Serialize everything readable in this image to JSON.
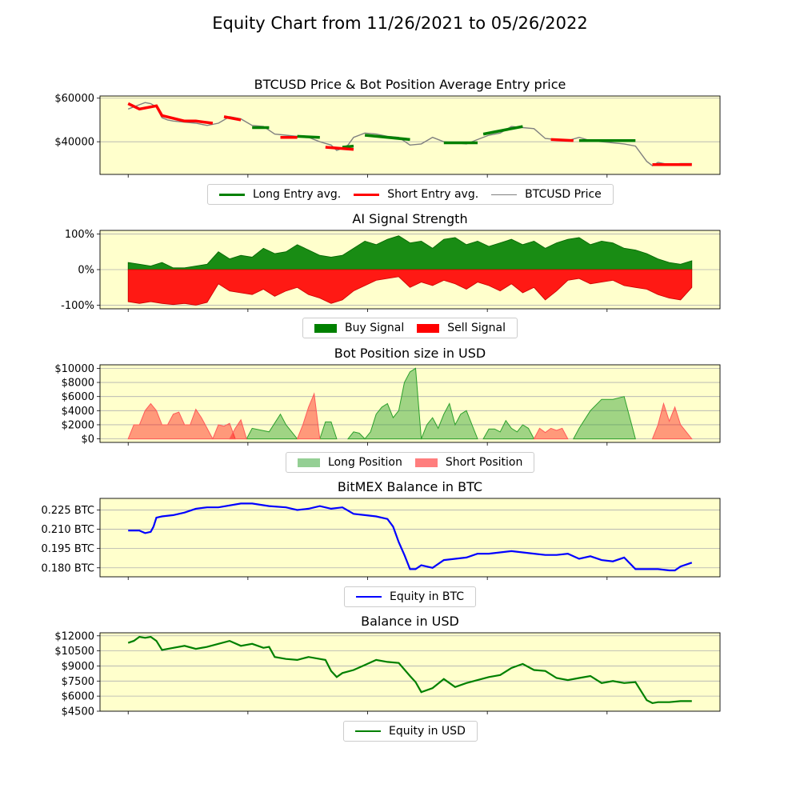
{
  "figure_title": "Equity Chart from 11/26/2021 to 05/26/2022",
  "chart_data": [
    {
      "type": "line",
      "title": "BTCUSD Price & Bot Position Average Entry price",
      "yticks": [
        {
          "v": 60000,
          "label": "$60000"
        },
        {
          "v": 40000,
          "label": "$40000"
        }
      ],
      "ylim": [
        25000,
        61000
      ],
      "xlim": [
        -0.05,
        1.05
      ],
      "grid": "horizontal",
      "legend_position": "bottom-center",
      "legend": [
        {
          "label": "Long Entry avg.",
          "color": "#008000"
        },
        {
          "label": "Short Entry avg.",
          "color": "#ff0000"
        },
        {
          "label": "BTCUSD Price",
          "color": "#808080"
        }
      ],
      "price": {
        "x": [
          0,
          0.02,
          0.03,
          0.04,
          0.05,
          0.06,
          0.07,
          0.08,
          0.1,
          0.12,
          0.14,
          0.16,
          0.18,
          0.2,
          0.22,
          0.24,
          0.26,
          0.28,
          0.3,
          0.32,
          0.34,
          0.36,
          0.37,
          0.38,
          0.39,
          0.4,
          0.42,
          0.44,
          0.46,
          0.48,
          0.5,
          0.52,
          0.54,
          0.56,
          0.58,
          0.6,
          0.62,
          0.64,
          0.66,
          0.68,
          0.7,
          0.72,
          0.74,
          0.76,
          0.78,
          0.8,
          0.82,
          0.84,
          0.86,
          0.88,
          0.9,
          0.92,
          0.93,
          0.94,
          0.96,
          0.98,
          1.0
        ],
        "y": [
          55000,
          57000,
          58000,
          57500,
          56000,
          51000,
          50000,
          49500,
          49000,
          48500,
          47500,
          48500,
          51500,
          50500,
          47500,
          47000,
          43500,
          43000,
          42500,
          42000,
          40000,
          38500,
          36000,
          37000,
          38500,
          42000,
          44000,
          43500,
          42500,
          42000,
          38500,
          39000,
          42000,
          40000,
          39500,
          39000,
          41000,
          43000,
          44000,
          47000,
          46500,
          46000,
          41500,
          41000,
          40500,
          42000,
          40500,
          40000,
          39500,
          39000,
          38000,
          31000,
          29000,
          30500,
          29500,
          30000,
          30000
        ]
      },
      "long_entry": [
        {
          "x": [
            0.22,
            0.25
          ],
          "y": [
            46500,
            46500
          ]
        },
        {
          "x": [
            0.3,
            0.34
          ],
          "y": [
            42500,
            42000
          ]
        },
        {
          "x": [
            0.38,
            0.4
          ],
          "y": [
            37500,
            38000
          ]
        },
        {
          "x": [
            0.42,
            0.5
          ],
          "y": [
            43000,
            41000
          ]
        },
        {
          "x": [
            0.56,
            0.62
          ],
          "y": [
            39500,
            39500
          ]
        },
        {
          "x": [
            0.63,
            0.7
          ],
          "y": [
            43500,
            47000
          ]
        },
        {
          "x": [
            0.8,
            0.9
          ],
          "y": [
            40500,
            40500
          ]
        }
      ],
      "short_entry": [
        {
          "x": [
            0,
            0.02,
            0.05,
            0.06,
            0.1,
            0.12,
            0.15
          ],
          "y": [
            57500,
            55000,
            56500,
            52000,
            49500,
            49500,
            48500
          ]
        },
        {
          "x": [
            0.17,
            0.2
          ],
          "y": [
            51500,
            50000
          ]
        },
        {
          "x": [
            0.27,
            0.3
          ],
          "y": [
            42000,
            42000
          ]
        },
        {
          "x": [
            0.35,
            0.4
          ],
          "y": [
            37500,
            36500
          ]
        },
        {
          "x": [
            0.75,
            0.79
          ],
          "y": [
            41000,
            40500
          ]
        },
        {
          "x": [
            0.93,
            1.0
          ],
          "y": [
            29500,
            29500
          ]
        }
      ]
    },
    {
      "type": "area",
      "title": "AI Signal Strength",
      "yticks": [
        {
          "v": 100,
          "label": "100%"
        },
        {
          "v": 0,
          "label": "0%"
        },
        {
          "v": -100,
          "label": "-100%"
        }
      ],
      "ylim": [
        -110,
        110
      ],
      "xlim": [
        -0.05,
        1.05
      ],
      "grid": "horizontal",
      "legend_position": "bottom-center",
      "legend": [
        {
          "label": "Buy Signal",
          "color": "#008000"
        },
        {
          "label": "Sell Signal",
          "color": "#ff0000"
        }
      ],
      "x": [
        0,
        0.02,
        0.04,
        0.06,
        0.08,
        0.1,
        0.12,
        0.14,
        0.16,
        0.18,
        0.2,
        0.22,
        0.24,
        0.26,
        0.28,
        0.3,
        0.32,
        0.34,
        0.36,
        0.38,
        0.4,
        0.42,
        0.44,
        0.46,
        0.48,
        0.5,
        0.52,
        0.54,
        0.56,
        0.58,
        0.6,
        0.62,
        0.64,
        0.66,
        0.68,
        0.7,
        0.72,
        0.74,
        0.76,
        0.78,
        0.8,
        0.82,
        0.84,
        0.86,
        0.88,
        0.9,
        0.92,
        0.94,
        0.96,
        0.98,
        1.0
      ],
      "buy": [
        20,
        15,
        10,
        20,
        5,
        5,
        10,
        15,
        50,
        30,
        40,
        35,
        60,
        45,
        50,
        70,
        55,
        40,
        35,
        40,
        60,
        80,
        70,
        85,
        95,
        75,
        80,
        60,
        85,
        90,
        70,
        80,
        65,
        75,
        85,
        70,
        80,
        60,
        75,
        85,
        90,
        70,
        80,
        75,
        60,
        55,
        45,
        30,
        20,
        15,
        25
      ],
      "sell": [
        -90,
        -95,
        -90,
        -95,
        -98,
        -95,
        -100,
        -92,
        -40,
        -60,
        -65,
        -70,
        -55,
        -75,
        -60,
        -50,
        -70,
        -80,
        -95,
        -85,
        -60,
        -45,
        -30,
        -25,
        -20,
        -50,
        -35,
        -45,
        -30,
        -40,
        -55,
        -35,
        -45,
        -60,
        -40,
        -65,
        -50,
        -85,
        -60,
        -30,
        -25,
        -40,
        -35,
        -30,
        -45,
        -50,
        -55,
        -70,
        -80,
        -85,
        -50
      ]
    },
    {
      "type": "area",
      "title": "Bot Position size in USD",
      "yticks": [
        {
          "v": 10000,
          "label": "$10000"
        },
        {
          "v": 8000,
          "label": "$8000"
        },
        {
          "v": 6000,
          "label": "$6000"
        },
        {
          "v": 4000,
          "label": "$4000"
        },
        {
          "v": 2000,
          "label": "$2000"
        },
        {
          "v": 0,
          "label": "$0"
        }
      ],
      "ylim": [
        -500,
        10500
      ],
      "xlim": [
        -0.05,
        1.05
      ],
      "grid": "horizontal",
      "legend_position": "bottom-center",
      "legend": [
        {
          "label": "Long Position",
          "color": "#2ca02c"
        },
        {
          "label": "Short Position",
          "color": "#ff0000"
        }
      ],
      "long": [
        {
          "x": [
            0.21,
            0.22,
            0.25,
            0.27,
            0.28,
            0.3
          ],
          "y": [
            0,
            1500,
            1000,
            3500,
            2000,
            0
          ]
        },
        {
          "x": [
            0.34,
            0.35,
            0.36,
            0.37
          ],
          "y": [
            0,
            2400,
            2400,
            0
          ]
        },
        {
          "x": [
            0.39,
            0.4,
            0.41,
            0.42
          ],
          "y": [
            0,
            1000,
            800,
            0
          ]
        },
        {
          "x": [
            0.42,
            0.43,
            0.44,
            0.45,
            0.46,
            0.47,
            0.48,
            0.49,
            0.5,
            0.51,
            0.52
          ],
          "y": [
            0,
            1000,
            3500,
            4500,
            5000,
            3000,
            4000,
            8000,
            9500,
            10000,
            0
          ]
        },
        {
          "x": [
            0.52,
            0.53,
            0.54,
            0.55,
            0.56,
            0.57,
            0.58,
            0.59,
            0.6,
            0.61,
            0.62
          ],
          "y": [
            0,
            2000,
            3000,
            1500,
            3500,
            5000,
            2000,
            3500,
            4000,
            2000,
            0
          ]
        },
        {
          "x": [
            0.63,
            0.64,
            0.65,
            0.66,
            0.67,
            0.68,
            0.69,
            0.7,
            0.71,
            0.72
          ],
          "y": [
            0,
            1400,
            1400,
            1000,
            2600,
            1500,
            1000,
            2000,
            1500,
            0
          ]
        },
        {
          "x": [
            0.79,
            0.8,
            0.82,
            0.84,
            0.86,
            0.88,
            0.9
          ],
          "y": [
            0,
            1500,
            4000,
            5600,
            5600,
            6000,
            0
          ]
        }
      ],
      "short": [
        {
          "x": [
            0,
            0.01,
            0.02,
            0.03,
            0.04,
            0.05,
            0.06,
            0.07,
            0.08,
            0.09,
            0.1,
            0.11,
            0.12,
            0.13,
            0.14,
            0.15
          ],
          "y": [
            0,
            2000,
            2000,
            4000,
            5000,
            4000,
            2000,
            2000,
            3500,
            3800,
            2000,
            2000,
            4200,
            3000,
            1500,
            0
          ]
        },
        {
          "x": [
            0.15,
            0.16,
            0.17,
            0.18,
            0.19
          ],
          "y": [
            0,
            2000,
            1800,
            2200,
            0
          ]
        },
        {
          "x": [
            0.18,
            0.19,
            0.2,
            0.21
          ],
          "y": [
            0,
            1500,
            2700,
            0
          ]
        },
        {
          "x": [
            0.3,
            0.31,
            0.32,
            0.33,
            0.34
          ],
          "y": [
            0,
            2000,
            4500,
            6400,
            0
          ]
        },
        {
          "x": [
            0.72,
            0.73,
            0.74,
            0.75,
            0.76,
            0.77,
            0.78
          ],
          "y": [
            0,
            1500,
            900,
            1500,
            1200,
            1500,
            0
          ]
        },
        {
          "x": [
            0.93,
            0.94,
            0.95,
            0.96,
            0.97,
            0.98,
            1.0
          ],
          "y": [
            0,
            2000,
            5000,
            2500,
            4500,
            2000,
            0
          ]
        }
      ]
    },
    {
      "type": "line",
      "title": "BitMEX Balance in BTC",
      "yticks": [
        {
          "v": 0.225,
          "label": "0.225 BTC"
        },
        {
          "v": 0.21,
          "label": "0.210 BTC"
        },
        {
          "v": 0.195,
          "label": "0.195 BTC"
        },
        {
          "v": 0.18,
          "label": "0.180 BTC"
        }
      ],
      "ylim": [
        0.173,
        0.234
      ],
      "xlim": [
        -0.05,
        1.05
      ],
      "grid": "horizontal",
      "legend_position": "bottom-center",
      "legend": [
        {
          "label": "Equity in BTC",
          "color": "#0000ff"
        }
      ],
      "series": [
        {
          "name": "Equity in BTC",
          "color": "#0000ff",
          "x": [
            0,
            0.02,
            0.03,
            0.04,
            0.045,
            0.05,
            0.06,
            0.08,
            0.1,
            0.12,
            0.14,
            0.16,
            0.2,
            0.22,
            0.25,
            0.28,
            0.3,
            0.32,
            0.34,
            0.36,
            0.38,
            0.4,
            0.42,
            0.44,
            0.46,
            0.47,
            0.48,
            0.49,
            0.5,
            0.51,
            0.52,
            0.54,
            0.56,
            0.58,
            0.6,
            0.62,
            0.64,
            0.66,
            0.68,
            0.7,
            0.72,
            0.74,
            0.76,
            0.78,
            0.8,
            0.82,
            0.84,
            0.86,
            0.88,
            0.9,
            0.92,
            0.94,
            0.96,
            0.97,
            0.98,
            1.0
          ],
          "y": [
            0.209,
            0.209,
            0.207,
            0.208,
            0.212,
            0.219,
            0.22,
            0.221,
            0.223,
            0.226,
            0.227,
            0.227,
            0.23,
            0.23,
            0.228,
            0.227,
            0.225,
            0.226,
            0.228,
            0.226,
            0.227,
            0.222,
            0.221,
            0.22,
            0.218,
            0.212,
            0.2,
            0.19,
            0.179,
            0.179,
            0.182,
            0.18,
            0.186,
            0.187,
            0.188,
            0.191,
            0.191,
            0.192,
            0.193,
            0.192,
            0.191,
            0.19,
            0.19,
            0.191,
            0.187,
            0.189,
            0.186,
            0.185,
            0.188,
            0.179,
            0.179,
            0.179,
            0.178,
            0.178,
            0.181,
            0.184
          ]
        }
      ]
    },
    {
      "type": "line",
      "title": "Balance in USD",
      "yticks": [
        {
          "v": 12000,
          "label": "$12000"
        },
        {
          "v": 10500,
          "label": "$10500"
        },
        {
          "v": 9000,
          "label": "$9000"
        },
        {
          "v": 7500,
          "label": "$7500"
        },
        {
          "v": 6000,
          "label": "$6000"
        },
        {
          "v": 4500,
          "label": "$4500"
        }
      ],
      "ylim": [
        4500,
        12300
      ],
      "xlim": [
        -0.05,
        1.05
      ],
      "grid": "horizontal",
      "legend_position": "bottom-center",
      "legend": [
        {
          "label": "Equity in USD",
          "color": "#008000"
        }
      ],
      "series": [
        {
          "name": "Equity in USD",
          "color": "#008000",
          "x": [
            0,
            0.01,
            0.02,
            0.03,
            0.04,
            0.05,
            0.06,
            0.08,
            0.1,
            0.12,
            0.14,
            0.16,
            0.18,
            0.2,
            0.22,
            0.24,
            0.25,
            0.26,
            0.28,
            0.3,
            0.32,
            0.34,
            0.35,
            0.36,
            0.37,
            0.38,
            0.4,
            0.42,
            0.44,
            0.46,
            0.48,
            0.5,
            0.51,
            0.52,
            0.54,
            0.56,
            0.58,
            0.6,
            0.62,
            0.64,
            0.66,
            0.68,
            0.7,
            0.72,
            0.74,
            0.76,
            0.78,
            0.8,
            0.82,
            0.84,
            0.86,
            0.88,
            0.9,
            0.92,
            0.93,
            0.94,
            0.96,
            0.98,
            1.0
          ],
          "y": [
            11300,
            11500,
            11900,
            11800,
            11900,
            11500,
            10600,
            10800,
            11000,
            10700,
            10900,
            11200,
            11500,
            11000,
            11200,
            10800,
            10900,
            9900,
            9700,
            9600,
            9900,
            9700,
            9600,
            8500,
            7900,
            8300,
            8600,
            9100,
            9600,
            9400,
            9300,
            8000,
            7400,
            6400,
            6800,
            7700,
            6900,
            7300,
            7600,
            7900,
            8100,
            8800,
            9200,
            8600,
            8500,
            7800,
            7600,
            7800,
            8000,
            7300,
            7500,
            7300,
            7400,
            5600,
            5300,
            5400,
            5400,
            5500,
            5500
          ]
        }
      ]
    }
  ]
}
